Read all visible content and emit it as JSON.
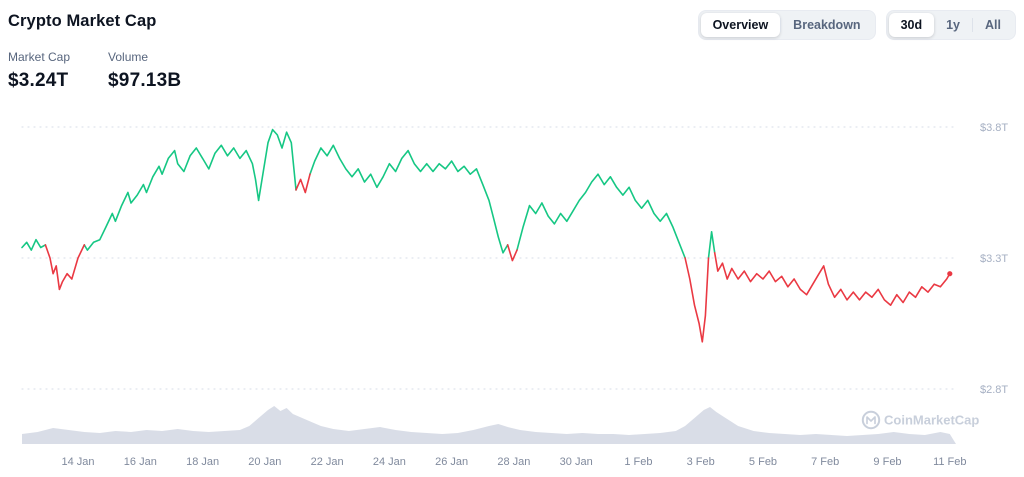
{
  "header": {
    "title": "Crypto Market Cap",
    "view_toggle": {
      "options": [
        "Overview",
        "Breakdown"
      ],
      "active": "Overview"
    },
    "range_toggle": {
      "options": [
        "30d",
        "1y",
        "All"
      ],
      "active": "30d"
    }
  },
  "stats": [
    {
      "label": "Market Cap",
      "value": "$3.24T"
    },
    {
      "label": "Volume",
      "value": "$97.13B"
    }
  ],
  "watermark": "CoinMarketCap",
  "colors": {
    "green": "#16c784",
    "red": "#ea3943",
    "grid": "#dfe4ec",
    "axis_text": "#a6b0c3",
    "x_text": "#808a9d",
    "volume_fill": "#b9c1d4",
    "watermark": "#c8cfdb"
  },
  "chart_data": [
    {
      "type": "line",
      "title": "Crypto Market Cap (30d)",
      "x_unit": "days (approx 12 Jan - 11 Feb)",
      "y_unit": "USD trillions",
      "ylim": [
        2.72,
        3.84
      ],
      "open_reference": 3.33,
      "red_spans": [
        [
          8.75,
          9.3
        ]
      ],
      "y_ticks": [
        {
          "label": "$3.8T",
          "v": 3.8
        },
        {
          "label": "$3.3T",
          "v": 3.3
        },
        {
          "label": "$2.8T",
          "v": 2.8
        }
      ],
      "x_ticks": [
        {
          "label": "14 Jan",
          "t": 1.8
        },
        {
          "label": "16 Jan",
          "t": 3.8
        },
        {
          "label": "18 Jan",
          "t": 5.8
        },
        {
          "label": "20 Jan",
          "t": 7.8
        },
        {
          "label": "22 Jan",
          "t": 9.8
        },
        {
          "label": "24 Jan",
          "t": 11.8
        },
        {
          "label": "26 Jan",
          "t": 13.8
        },
        {
          "label": "28 Jan",
          "t": 15.8
        },
        {
          "label": "30 Jan",
          "t": 17.8
        },
        {
          "label": "1 Feb",
          "t": 19.8
        },
        {
          "label": "3 Feb",
          "t": 21.8
        },
        {
          "label": "5 Feb",
          "t": 23.8
        },
        {
          "label": "7 Feb",
          "t": 25.8
        },
        {
          "label": "9 Feb",
          "t": 27.8
        },
        {
          "label": "11 Feb",
          "t": 29.8
        }
      ],
      "points": [
        [
          0,
          3.34
        ],
        [
          0.15,
          3.36
        ],
        [
          0.3,
          3.33
        ],
        [
          0.45,
          3.37
        ],
        [
          0.6,
          3.34
        ],
        [
          0.75,
          3.35
        ],
        [
          0.9,
          3.3
        ],
        [
          1,
          3.24
        ],
        [
          1.1,
          3.27
        ],
        [
          1.2,
          3.18
        ],
        [
          1.3,
          3.21
        ],
        [
          1.45,
          3.24
        ],
        [
          1.6,
          3.22
        ],
        [
          1.8,
          3.3
        ],
        [
          2,
          3.35
        ],
        [
          2.1,
          3.33
        ],
        [
          2.3,
          3.36
        ],
        [
          2.5,
          3.37
        ],
        [
          2.7,
          3.42
        ],
        [
          2.9,
          3.47
        ],
        [
          3,
          3.44
        ],
        [
          3.2,
          3.5
        ],
        [
          3.4,
          3.55
        ],
        [
          3.5,
          3.51
        ],
        [
          3.7,
          3.54
        ],
        [
          3.9,
          3.58
        ],
        [
          4,
          3.55
        ],
        [
          4.2,
          3.61
        ],
        [
          4.4,
          3.65
        ],
        [
          4.5,
          3.62
        ],
        [
          4.7,
          3.68
        ],
        [
          4.9,
          3.71
        ],
        [
          5,
          3.66
        ],
        [
          5.2,
          3.63
        ],
        [
          5.4,
          3.69
        ],
        [
          5.6,
          3.72
        ],
        [
          5.8,
          3.68
        ],
        [
          6,
          3.64
        ],
        [
          6.2,
          3.7
        ],
        [
          6.4,
          3.73
        ],
        [
          6.6,
          3.69
        ],
        [
          6.8,
          3.72
        ],
        [
          7,
          3.68
        ],
        [
          7.2,
          3.71
        ],
        [
          7.4,
          3.66
        ],
        [
          7.5,
          3.6
        ],
        [
          7.6,
          3.52
        ],
        [
          7.75,
          3.63
        ],
        [
          7.9,
          3.74
        ],
        [
          8.05,
          3.79
        ],
        [
          8.2,
          3.77
        ],
        [
          8.35,
          3.72
        ],
        [
          8.5,
          3.78
        ],
        [
          8.65,
          3.74
        ],
        [
          8.8,
          3.56
        ],
        [
          8.95,
          3.6
        ],
        [
          9.1,
          3.55
        ],
        [
          9.25,
          3.62
        ],
        [
          9.4,
          3.67
        ],
        [
          9.6,
          3.72
        ],
        [
          9.8,
          3.69
        ],
        [
          10,
          3.73
        ],
        [
          10.2,
          3.68
        ],
        [
          10.4,
          3.64
        ],
        [
          10.6,
          3.61
        ],
        [
          10.8,
          3.64
        ],
        [
          11,
          3.59
        ],
        [
          11.2,
          3.62
        ],
        [
          11.4,
          3.57
        ],
        [
          11.6,
          3.61
        ],
        [
          11.8,
          3.66
        ],
        [
          12,
          3.63
        ],
        [
          12.2,
          3.68
        ],
        [
          12.4,
          3.71
        ],
        [
          12.6,
          3.66
        ],
        [
          12.8,
          3.63
        ],
        [
          13,
          3.66
        ],
        [
          13.2,
          3.63
        ],
        [
          13.4,
          3.66
        ],
        [
          13.6,
          3.64
        ],
        [
          13.8,
          3.67
        ],
        [
          14,
          3.63
        ],
        [
          14.2,
          3.65
        ],
        [
          14.4,
          3.62
        ],
        [
          14.6,
          3.64
        ],
        [
          14.8,
          3.58
        ],
        [
          15,
          3.52
        ],
        [
          15.15,
          3.45
        ],
        [
          15.3,
          3.38
        ],
        [
          15.45,
          3.32
        ],
        [
          15.6,
          3.35
        ],
        [
          15.75,
          3.29
        ],
        [
          15.9,
          3.33
        ],
        [
          16.1,
          3.42
        ],
        [
          16.3,
          3.5
        ],
        [
          16.5,
          3.47
        ],
        [
          16.7,
          3.51
        ],
        [
          16.9,
          3.46
        ],
        [
          17.1,
          3.43
        ],
        [
          17.3,
          3.47
        ],
        [
          17.5,
          3.44
        ],
        [
          17.7,
          3.48
        ],
        [
          17.9,
          3.52
        ],
        [
          18.1,
          3.55
        ],
        [
          18.3,
          3.59
        ],
        [
          18.5,
          3.62
        ],
        [
          18.7,
          3.58
        ],
        [
          18.9,
          3.61
        ],
        [
          19.1,
          3.57
        ],
        [
          19.3,
          3.54
        ],
        [
          19.5,
          3.57
        ],
        [
          19.7,
          3.52
        ],
        [
          19.9,
          3.49
        ],
        [
          20.1,
          3.52
        ],
        [
          20.3,
          3.47
        ],
        [
          20.5,
          3.44
        ],
        [
          20.7,
          3.47
        ],
        [
          20.9,
          3.42
        ],
        [
          21.1,
          3.36
        ],
        [
          21.3,
          3.3
        ],
        [
          21.45,
          3.22
        ],
        [
          21.6,
          3.12
        ],
        [
          21.75,
          3.05
        ],
        [
          21.85,
          2.98
        ],
        [
          21.95,
          3.08
        ],
        [
          22.05,
          3.3
        ],
        [
          22.15,
          3.4
        ],
        [
          22.25,
          3.32
        ],
        [
          22.35,
          3.25
        ],
        [
          22.5,
          3.28
        ],
        [
          22.65,
          3.22
        ],
        [
          22.8,
          3.26
        ],
        [
          23,
          3.22
        ],
        [
          23.2,
          3.25
        ],
        [
          23.4,
          3.21
        ],
        [
          23.6,
          3.24
        ],
        [
          23.8,
          3.22
        ],
        [
          24,
          3.25
        ],
        [
          24.2,
          3.21
        ],
        [
          24.4,
          3.23
        ],
        [
          24.6,
          3.19
        ],
        [
          24.8,
          3.22
        ],
        [
          25,
          3.18
        ],
        [
          25.2,
          3.16
        ],
        [
          25.4,
          3.2
        ],
        [
          25.6,
          3.24
        ],
        [
          25.75,
          3.27
        ],
        [
          25.9,
          3.2
        ],
        [
          26.1,
          3.15
        ],
        [
          26.3,
          3.18
        ],
        [
          26.5,
          3.14
        ],
        [
          26.7,
          3.17
        ],
        [
          26.9,
          3.14
        ],
        [
          27.1,
          3.17
        ],
        [
          27.3,
          3.15
        ],
        [
          27.5,
          3.18
        ],
        [
          27.7,
          3.14
        ],
        [
          27.9,
          3.12
        ],
        [
          28.1,
          3.16
        ],
        [
          28.3,
          3.13
        ],
        [
          28.5,
          3.17
        ],
        [
          28.7,
          3.15
        ],
        [
          28.9,
          3.19
        ],
        [
          29.1,
          3.17
        ],
        [
          29.3,
          3.2
        ],
        [
          29.5,
          3.19
        ],
        [
          29.7,
          3.22
        ],
        [
          29.8,
          3.24
        ]
      ]
    },
    {
      "type": "area",
      "name": "volume",
      "y_unit": "relative height (px)",
      "points": [
        [
          0,
          10
        ],
        [
          0.5,
          12
        ],
        [
          1,
          16
        ],
        [
          1.5,
          14
        ],
        [
          2,
          12
        ],
        [
          2.5,
          11
        ],
        [
          3,
          13
        ],
        [
          3.5,
          12
        ],
        [
          4,
          14
        ],
        [
          4.5,
          13
        ],
        [
          5,
          15
        ],
        [
          5.5,
          13
        ],
        [
          6,
          12
        ],
        [
          6.5,
          13
        ],
        [
          7,
          14
        ],
        [
          7.3,
          18
        ],
        [
          7.6,
          26
        ],
        [
          7.9,
          34
        ],
        [
          8.1,
          38
        ],
        [
          8.3,
          33
        ],
        [
          8.5,
          36
        ],
        [
          8.7,
          30
        ],
        [
          9,
          26
        ],
        [
          9.3,
          22
        ],
        [
          9.6,
          18
        ],
        [
          10,
          15
        ],
        [
          10.5,
          13
        ],
        [
          11,
          15
        ],
        [
          11.5,
          17
        ],
        [
          12,
          14
        ],
        [
          12.5,
          12
        ],
        [
          13,
          11
        ],
        [
          13.5,
          10
        ],
        [
          14,
          11
        ],
        [
          14.5,
          14
        ],
        [
          15,
          18
        ],
        [
          15.3,
          20
        ],
        [
          15.6,
          17
        ],
        [
          16,
          14
        ],
        [
          16.5,
          12
        ],
        [
          17,
          11
        ],
        [
          17.5,
          10
        ],
        [
          18,
          11
        ],
        [
          18.5,
          10
        ],
        [
          19,
          10
        ],
        [
          19.5,
          9
        ],
        [
          20,
          10
        ],
        [
          20.5,
          11
        ],
        [
          21,
          13
        ],
        [
          21.3,
          18
        ],
        [
          21.6,
          26
        ],
        [
          21.9,
          34
        ],
        [
          22.1,
          37
        ],
        [
          22.3,
          32
        ],
        [
          22.6,
          26
        ],
        [
          23,
          18
        ],
        [
          23.5,
          13
        ],
        [
          24,
          11
        ],
        [
          24.5,
          10
        ],
        [
          25,
          9
        ],
        [
          25.5,
          10
        ],
        [
          26,
          9
        ],
        [
          26.5,
          8
        ],
        [
          27,
          9
        ],
        [
          27.5,
          10
        ],
        [
          28,
          12
        ],
        [
          28.5,
          10
        ],
        [
          29,
          9
        ],
        [
          29.5,
          12
        ],
        [
          29.8,
          10
        ]
      ]
    }
  ]
}
